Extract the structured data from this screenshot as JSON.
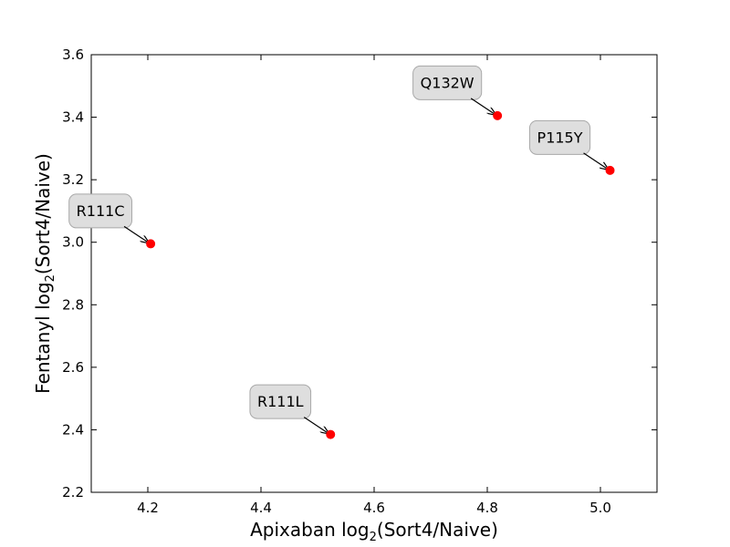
{
  "chart_data": {
    "type": "scatter",
    "title": "",
    "xlabel": {
      "prefix": "Apixaban log",
      "subscript": "2",
      "suffix": "(Sort4/Naive)"
    },
    "ylabel": {
      "prefix": "Fentanyl log",
      "subscript": "2",
      "suffix": "(Sort4/Naive)"
    },
    "xlim": [
      4.1,
      5.1
    ],
    "ylim": [
      2.2,
      3.6
    ],
    "xticks": [
      4.2,
      4.4,
      4.6,
      4.8,
      5.0
    ],
    "xtick_labels": [
      "4.2",
      "4.4",
      "4.6",
      "4.8",
      "5.0"
    ],
    "yticks": [
      2.2,
      2.4,
      2.6,
      2.8,
      3.0,
      3.2,
      3.4,
      3.6
    ],
    "ytick_labels": [
      "2.2",
      "2.4",
      "2.6",
      "2.8",
      "3.0",
      "3.2",
      "3.4",
      "3.6"
    ],
    "grid": false,
    "marker_color": "#ff0000",
    "annotation_box_color": "#dedede",
    "points": [
      {
        "label": "R111C",
        "x": 4.205,
        "y": 2.995
      },
      {
        "label": "R111L",
        "x": 4.523,
        "y": 2.385
      },
      {
        "label": "Q132W",
        "x": 4.818,
        "y": 3.405
      },
      {
        "label": "P115Y",
        "x": 5.017,
        "y": 3.23
      }
    ]
  }
}
